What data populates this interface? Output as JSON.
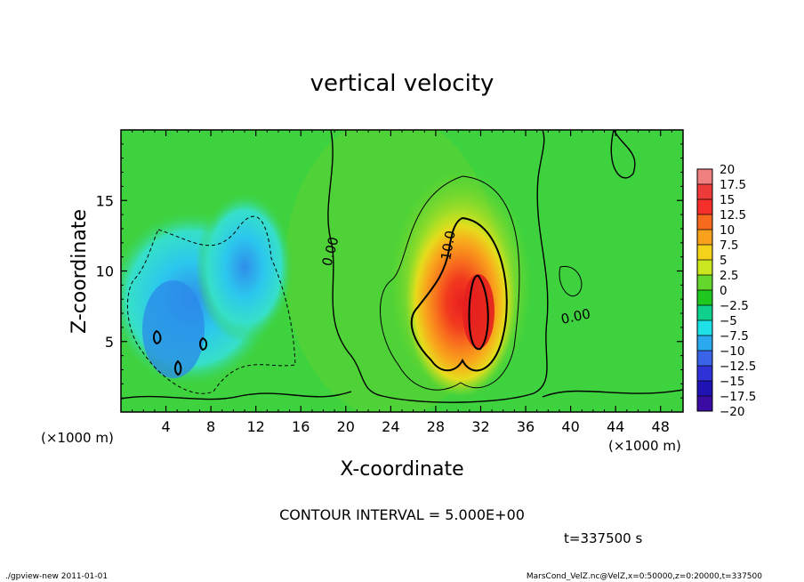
{
  "chart_data": {
    "type": "heatmap",
    "title": "vertical velocity",
    "xlabel": "X-coordinate",
    "ylabel": "Z-coordinate",
    "x_unit_left": "(×1000 m)",
    "x_unit_right": "(×1000 m)",
    "x_ticks": [
      4,
      8,
      12,
      16,
      20,
      24,
      28,
      32,
      36,
      40,
      44,
      48
    ],
    "y_ticks": [
      5,
      10,
      15
    ],
    "xlim": [
      0,
      50
    ],
    "ylim": [
      0,
      20
    ],
    "colorbar": {
      "labels": [
        "20",
        "17.5",
        "15",
        "12.5",
        "10",
        "7.5",
        "5",
        "2.5",
        "0",
        "−2.5",
        "−5",
        "−7.5",
        "−10",
        "−12.5",
        "−15",
        "−17.5",
        "−20"
      ],
      "colors": [
        "#f07f7f",
        "#ec3b38",
        "#f5302a",
        "#f76a1e",
        "#f9a11c",
        "#f4d21a",
        "#c9e620",
        "#63d72b",
        "#1ec81e",
        "#10d08e",
        "#1fe0e6",
        "#2aa9ef",
        "#3a64e8",
        "#2f32d6",
        "#1f14b3",
        "#3a0ca3",
        "#6b13b0"
      ]
    },
    "contour_labels": [
      "10.0",
      "0.00",
      "0.00"
    ],
    "contour_interval_text": "CONTOUR INTERVAL = 5.000E+00",
    "time_text": "t=337500 s",
    "features": [
      {
        "type": "updraft-core",
        "x_center": 30.5,
        "z_center": 6.5,
        "max_value": 15
      },
      {
        "type": "downdraft-region",
        "x_range": [
          1,
          15
        ],
        "z_range": [
          2,
          14
        ],
        "min_value": -10
      }
    ]
  },
  "footer": {
    "left": "./gpview-new  2011-01-01",
    "right": "MarsCond_VelZ.nc@VelZ,x=0:50000,z=0:20000,t=337500"
  },
  "colors": {
    "background_field": "#3ed23e",
    "axis": "#000000"
  }
}
